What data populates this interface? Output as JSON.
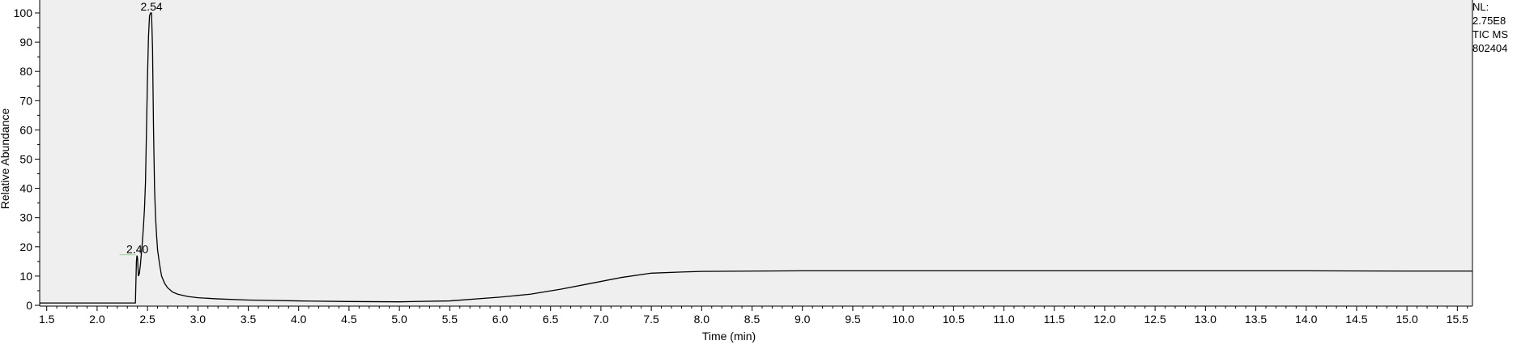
{
  "chart_data": {
    "type": "line",
    "title": "",
    "xlabel": "Time (min)",
    "ylabel": "Relative Abundance",
    "xlim": [
      1.43,
      15.65
    ],
    "ylim": [
      0,
      100
    ],
    "x_ticks": [
      "1.5",
      "2.0",
      "2.5",
      "3.0",
      "3.5",
      "4.0",
      "4.5",
      "5.0",
      "5.5",
      "6.0",
      "6.5",
      "7.0",
      "7.5",
      "8.0",
      "8.5",
      "9.0",
      "9.5",
      "10.0",
      "10.5",
      "11.0",
      "11.5",
      "12.0",
      "12.5",
      "13.0",
      "13.5",
      "14.0",
      "14.5",
      "15.0",
      "15.5"
    ],
    "y_ticks": [
      "0",
      "10",
      "20",
      "30",
      "40",
      "50",
      "60",
      "70",
      "80",
      "90",
      "100"
    ],
    "grid": false,
    "background": "#efefef",
    "line_color": "#000000",
    "peak_labels": [
      {
        "x": 2.54,
        "y": 100,
        "text": "2.54"
      },
      {
        "x": 2.4,
        "y": 17,
        "text": "2.40"
      }
    ],
    "series": [
      {
        "x": [
          1.43,
          1.6,
          1.8,
          2.0,
          2.2,
          2.38,
          2.39,
          2.395,
          2.4,
          2.41,
          2.42,
          2.43,
          2.44,
          2.45,
          2.46,
          2.47,
          2.48,
          2.49,
          2.5,
          2.51,
          2.52,
          2.53,
          2.54,
          2.55,
          2.56,
          2.57,
          2.58,
          2.59,
          2.6,
          2.62,
          2.64,
          2.67,
          2.7,
          2.75,
          2.8,
          2.9,
          3.0,
          3.2,
          3.5,
          4.0,
          4.5,
          5.0,
          5.5,
          6.0,
          6.3,
          6.6,
          6.9,
          7.2,
          7.5,
          7.8,
          8.0,
          9.0,
          10.0,
          11.0,
          12.0,
          13.0,
          14.0,
          15.0,
          15.65
        ],
        "y": [
          0.8,
          0.8,
          0.8,
          0.8,
          0.8,
          0.8,
          15,
          17,
          16.5,
          10,
          11,
          14,
          18,
          22,
          27,
          33,
          42,
          60,
          78,
          92,
          99,
          100,
          100,
          88,
          60,
          40,
          30,
          24,
          19,
          14,
          10,
          7.5,
          6,
          4.5,
          3.8,
          3.0,
          2.6,
          2.2,
          1.8,
          1.5,
          1.3,
          1.2,
          1.5,
          2.8,
          3.8,
          5.5,
          7.5,
          9.5,
          11,
          11.4,
          11.6,
          11.8,
          11.8,
          11.8,
          11.8,
          11.8,
          11.8,
          11.7,
          11.7
        ]
      }
    ]
  },
  "info": {
    "nl_label": "NL:",
    "nl_value": "2.75E8",
    "trace": "TIC  MS",
    "sample": "802404"
  }
}
